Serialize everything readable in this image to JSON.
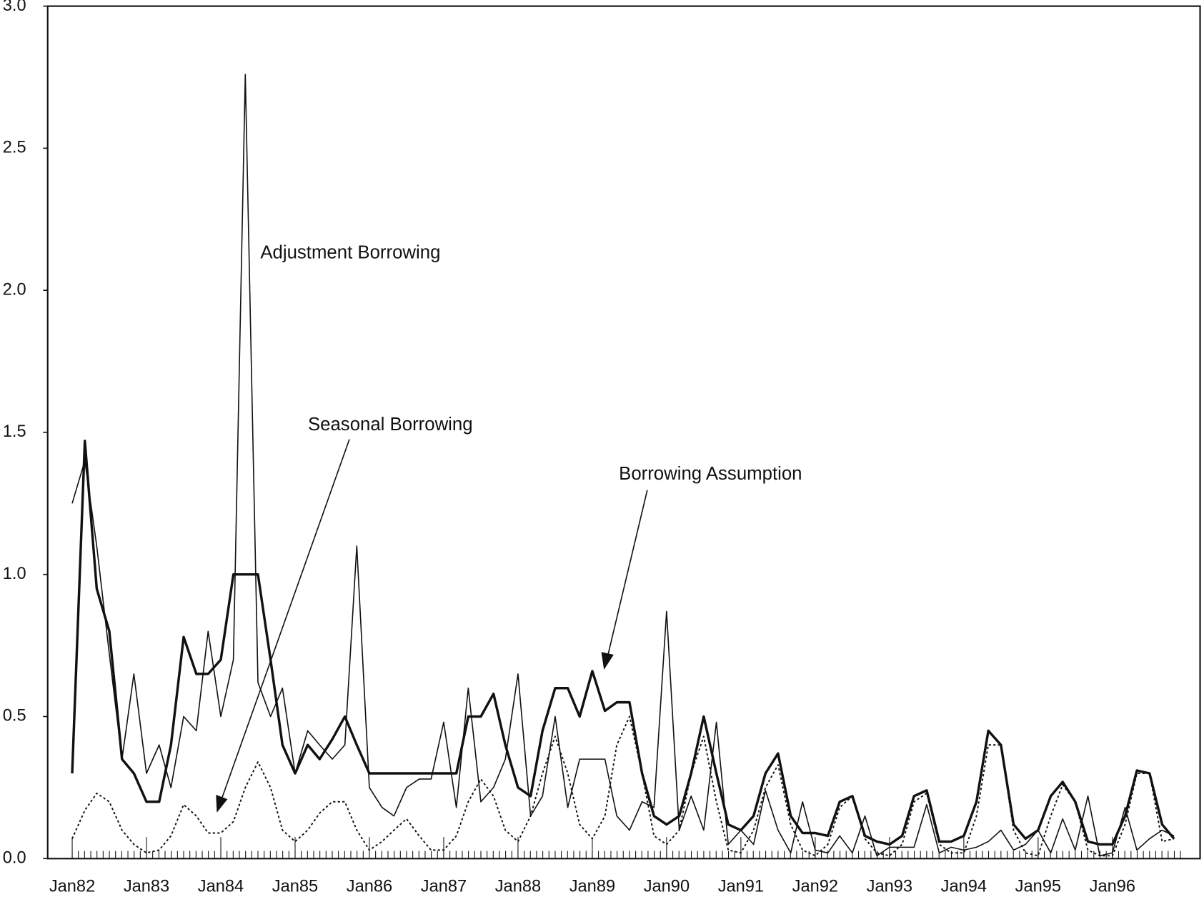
{
  "chart_data": {
    "type": "line",
    "x": [
      1982,
      1982.17,
      1982.33,
      1982.5,
      1982.67,
      1982.83,
      1983,
      1983.17,
      1983.33,
      1983.5,
      1983.67,
      1983.83,
      1984,
      1984.17,
      1984.33,
      1984.5,
      1984.67,
      1984.83,
      1985,
      1985.17,
      1985.33,
      1985.5,
      1985.67,
      1985.83,
      1986,
      1986.17,
      1986.33,
      1986.5,
      1986.67,
      1986.83,
      1987,
      1987.17,
      1987.33,
      1987.5,
      1987.67,
      1987.83,
      1988,
      1988.17,
      1988.33,
      1988.5,
      1988.67,
      1988.83,
      1989,
      1989.17,
      1989.33,
      1989.5,
      1989.67,
      1989.83,
      1990,
      1990.17,
      1990.33,
      1990.5,
      1990.67,
      1990.83,
      1991,
      1991.17,
      1991.33,
      1991.5,
      1991.67,
      1991.83,
      1992,
      1992.17,
      1992.33,
      1992.5,
      1992.67,
      1992.83,
      1993,
      1993.17,
      1993.33,
      1993.5,
      1993.67,
      1993.83,
      1994,
      1994.17,
      1994.33,
      1994.5,
      1994.67,
      1994.83,
      1995,
      1995.17,
      1995.33,
      1995.5,
      1995.67,
      1995.83,
      1996,
      1996.17,
      1996.33,
      1996.5,
      1996.67,
      1996.83
    ],
    "series": [
      {
        "name": "Borrowing Assumption",
        "color": "#111111",
        "style": "thick",
        "values": [
          0.3,
          1.47,
          0.95,
          0.8,
          0.35,
          0.3,
          0.2,
          0.2,
          0.4,
          0.78,
          0.65,
          0.65,
          0.7,
          1.0,
          1.0,
          1.0,
          0.7,
          0.4,
          0.3,
          0.4,
          0.35,
          0.42,
          0.5,
          0.4,
          0.3,
          0.3,
          0.3,
          0.3,
          0.3,
          0.3,
          0.3,
          0.3,
          0.5,
          0.5,
          0.58,
          0.4,
          0.25,
          0.22,
          0.45,
          0.6,
          0.6,
          0.5,
          0.66,
          0.52,
          0.55,
          0.55,
          0.3,
          0.15,
          0.12,
          0.15,
          0.3,
          0.5,
          0.3,
          0.12,
          0.1,
          0.15,
          0.3,
          0.37,
          0.15,
          0.09,
          0.09,
          0.08,
          0.2,
          0.22,
          0.08,
          0.06,
          0.05,
          0.08,
          0.22,
          0.24,
          0.06,
          0.06,
          0.08,
          0.2,
          0.45,
          0.4,
          0.12,
          0.07,
          0.1,
          0.22,
          0.27,
          0.2,
          0.06,
          0.05,
          0.05,
          0.15,
          0.31,
          0.3,
          0.12,
          0.07
        ]
      },
      {
        "name": "Adjustment Borrowing",
        "color": "#111111",
        "style": "thin",
        "values": [
          1.25,
          1.4,
          1.1,
          0.72,
          0.35,
          0.65,
          0.3,
          0.4,
          0.25,
          0.5,
          0.45,
          0.8,
          0.5,
          0.7,
          2.76,
          0.62,
          0.5,
          0.6,
          0.3,
          0.45,
          0.4,
          0.35,
          0.4,
          1.1,
          0.25,
          0.18,
          0.15,
          0.25,
          0.28,
          0.28,
          0.48,
          0.18,
          0.6,
          0.2,
          0.25,
          0.35,
          0.65,
          0.15,
          0.22,
          0.5,
          0.18,
          0.35,
          0.35,
          0.35,
          0.15,
          0.1,
          0.2,
          0.18,
          0.87,
          0.1,
          0.22,
          0.1,
          0.48,
          0.05,
          0.1,
          0.05,
          0.24,
          0.1,
          0.02,
          0.2,
          0.03,
          0.02,
          0.08,
          0.02,
          0.15,
          0.01,
          0.04,
          0.04,
          0.04,
          0.19,
          0.02,
          0.04,
          0.03,
          0.04,
          0.06,
          0.1,
          0.03,
          0.05,
          0.1,
          0.02,
          0.14,
          0.03,
          0.22,
          0.01,
          0.02,
          0.18,
          0.03,
          0.07,
          0.1,
          0.08
        ]
      },
      {
        "name": "Seasonal Borrowing",
        "color": "#111111",
        "style": "dotted",
        "values": [
          0.07,
          0.17,
          0.23,
          0.2,
          0.1,
          0.05,
          0.02,
          0.03,
          0.08,
          0.19,
          0.15,
          0.09,
          0.09,
          0.13,
          0.25,
          0.34,
          0.25,
          0.1,
          0.06,
          0.1,
          0.16,
          0.2,
          0.2,
          0.1,
          0.03,
          0.06,
          0.1,
          0.14,
          0.08,
          0.03,
          0.03,
          0.08,
          0.2,
          0.28,
          0.22,
          0.1,
          0.06,
          0.15,
          0.3,
          0.43,
          0.3,
          0.12,
          0.07,
          0.15,
          0.4,
          0.5,
          0.3,
          0.08,
          0.05,
          0.1,
          0.3,
          0.43,
          0.2,
          0.03,
          0.02,
          0.1,
          0.25,
          0.33,
          0.12,
          0.03,
          0.01,
          0.05,
          0.18,
          0.22,
          0.07,
          0.02,
          0.01,
          0.05,
          0.2,
          0.23,
          0.05,
          0.02,
          0.02,
          0.15,
          0.4,
          0.4,
          0.1,
          0.02,
          0.01,
          0.15,
          0.26,
          0.2,
          0.03,
          0.01,
          0.01,
          0.12,
          0.3,
          0.3,
          0.06,
          0.07
        ]
      }
    ],
    "xlim": [
      1981.67,
      1997.18
    ],
    "ylim": [
      0,
      3
    ],
    "xticks": [
      {
        "value": 1982,
        "label": "Jan82"
      },
      {
        "value": 1983,
        "label": "Jan83"
      },
      {
        "value": 1984,
        "label": "Jan84"
      },
      {
        "value": 1985,
        "label": "Jan85"
      },
      {
        "value": 1986,
        "label": "Jan86"
      },
      {
        "value": 1987,
        "label": "Jan87"
      },
      {
        "value": 1988,
        "label": "Jan88"
      },
      {
        "value": 1989,
        "label": "Jan89"
      },
      {
        "value": 1990,
        "label": "Jan90"
      },
      {
        "value": 1991,
        "label": "Jan91"
      },
      {
        "value": 1992,
        "label": "Jan92"
      },
      {
        "value": 1993,
        "label": "Jan93"
      },
      {
        "value": 1994,
        "label": "Jan94"
      },
      {
        "value": 1995,
        "label": "Jan95"
      },
      {
        "value": 1996,
        "label": "Jan96"
      }
    ],
    "yticks": [
      {
        "value": 0,
        "label": "0.0"
      },
      {
        "value": 0.5,
        "label": "0.5"
      },
      {
        "value": 1,
        "label": "1.0"
      },
      {
        "value": 1.5,
        "label": "1.5"
      },
      {
        "value": 2,
        "label": "2.0"
      },
      {
        "value": 2.5,
        "label": "2.5"
      },
      {
        "value": 3,
        "label": "3.0"
      }
    ]
  }
}
